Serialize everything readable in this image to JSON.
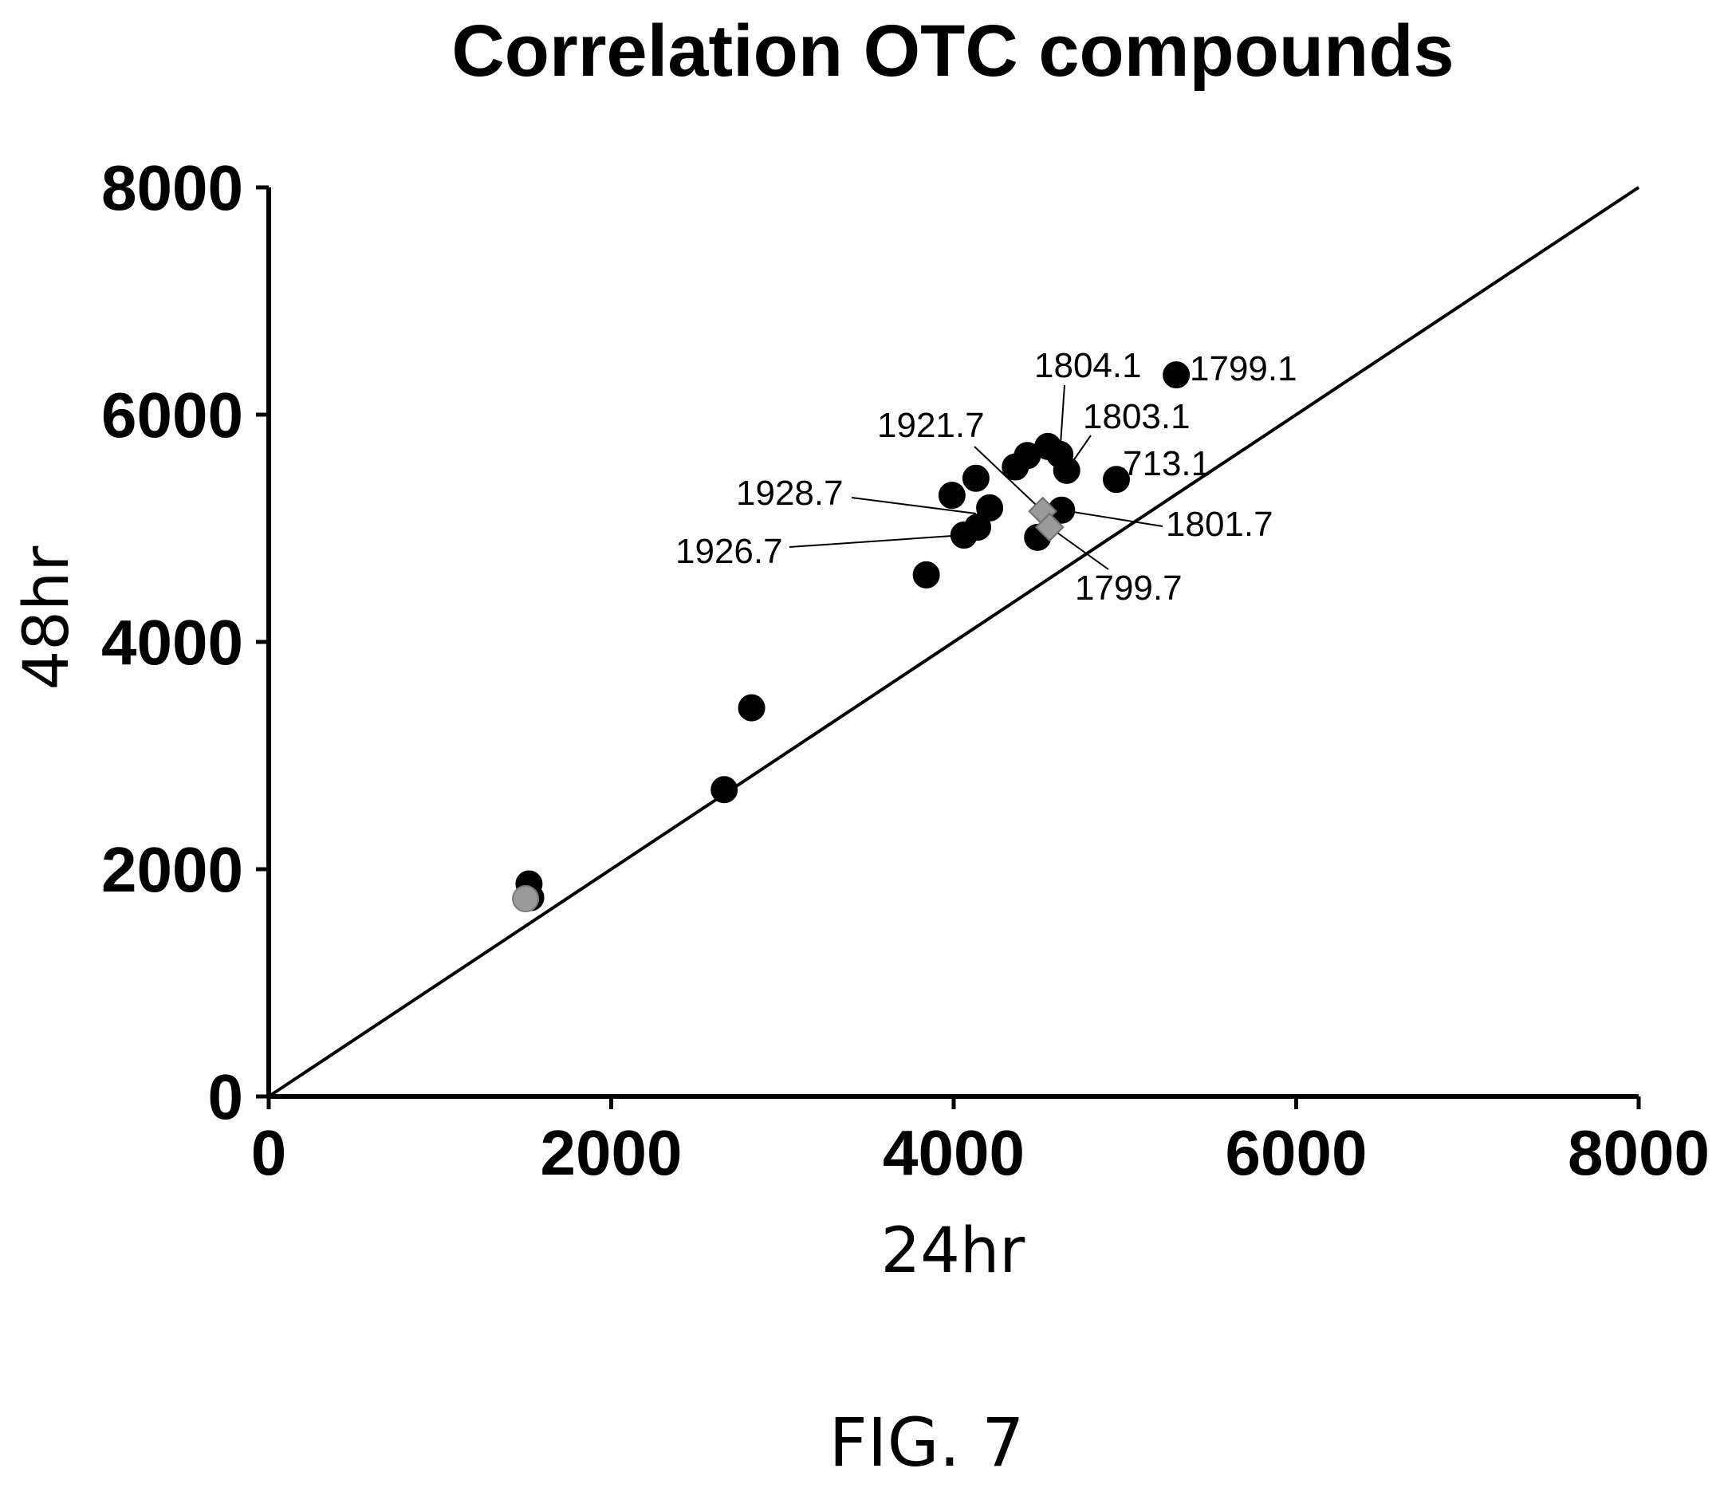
{
  "figure_label": "FIG. 7",
  "chart_data": {
    "type": "scatter",
    "title": "Correlation OTC compounds",
    "xlabel": "24hr",
    "ylabel": "48hr",
    "xlim": [
      0,
      8000
    ],
    "ylim": [
      0,
      8000
    ],
    "xticks": [
      "0",
      "2000",
      "4000",
      "6000",
      "8000"
    ],
    "yticks": [
      "0",
      "2000",
      "4000",
      "6000",
      "8000"
    ],
    "grid": false,
    "legend": "none",
    "reference_line": {
      "x": [
        0,
        8000
      ],
      "y": [
        0,
        8000
      ]
    },
    "colors": {
      "black_points": "#000000",
      "gray_points": "#9a9a9a",
      "line": "#000000"
    },
    "series": [
      {
        "color": "black",
        "marker": "circle",
        "points": [
          {
            "x": 1520,
            "y": 1870
          },
          {
            "x": 1530,
            "y": 1750
          },
          {
            "x": 2660,
            "y": 2700
          },
          {
            "x": 2820,
            "y": 3420
          },
          {
            "x": 3840,
            "y": 4590
          },
          {
            "x": 3990,
            "y": 5290
          },
          {
            "x": 4060,
            "y": 4940
          },
          {
            "x": 4130,
            "y": 5440
          },
          {
            "x": 4140,
            "y": 5010
          },
          {
            "x": 4210,
            "y": 5180
          },
          {
            "x": 4360,
            "y": 5540
          },
          {
            "x": 4430,
            "y": 5640
          },
          {
            "x": 4490,
            "y": 4920
          },
          {
            "x": 4550,
            "y": 5720
          },
          {
            "x": 4620,
            "y": 5650
          },
          {
            "x": 4630,
            "y": 5160
          },
          {
            "x": 4660,
            "y": 5510
          },
          {
            "x": 4950,
            "y": 5430
          },
          {
            "x": 5300,
            "y": 6350
          }
        ]
      },
      {
        "color": "gray",
        "marker": "circle",
        "points": [
          {
            "x": 1500,
            "y": 1740
          }
        ]
      },
      {
        "color": "gray",
        "marker": "diamond",
        "points": [
          {
            "x": 4520,
            "y": 5150
          },
          {
            "x": 4560,
            "y": 5010
          }
        ]
      }
    ],
    "annotations": [
      {
        "text": "1799.1",
        "point": {
          "x": 5300,
          "y": 6350
        }
      },
      {
        "text": "1804.1",
        "point": {
          "x": 4620,
          "y": 5650
        }
      },
      {
        "text": "1803.1",
        "point": {
          "x": 4660,
          "y": 5510
        }
      },
      {
        "text": "713.1",
        "point": {
          "x": 4950,
          "y": 5430
        }
      },
      {
        "text": "1921.7",
        "point": {
          "x": 4520,
          "y": 5150
        }
      },
      {
        "text": "1928.7",
        "point": {
          "x": 4130,
          "y": 5130
        }
      },
      {
        "text": "1801.7",
        "point": {
          "x": 4630,
          "y": 5160
        }
      },
      {
        "text": "1926.7",
        "point": {
          "x": 4060,
          "y": 4940
        }
      },
      {
        "text": "1799.7",
        "point": {
          "x": 4560,
          "y": 5010
        }
      }
    ]
  }
}
